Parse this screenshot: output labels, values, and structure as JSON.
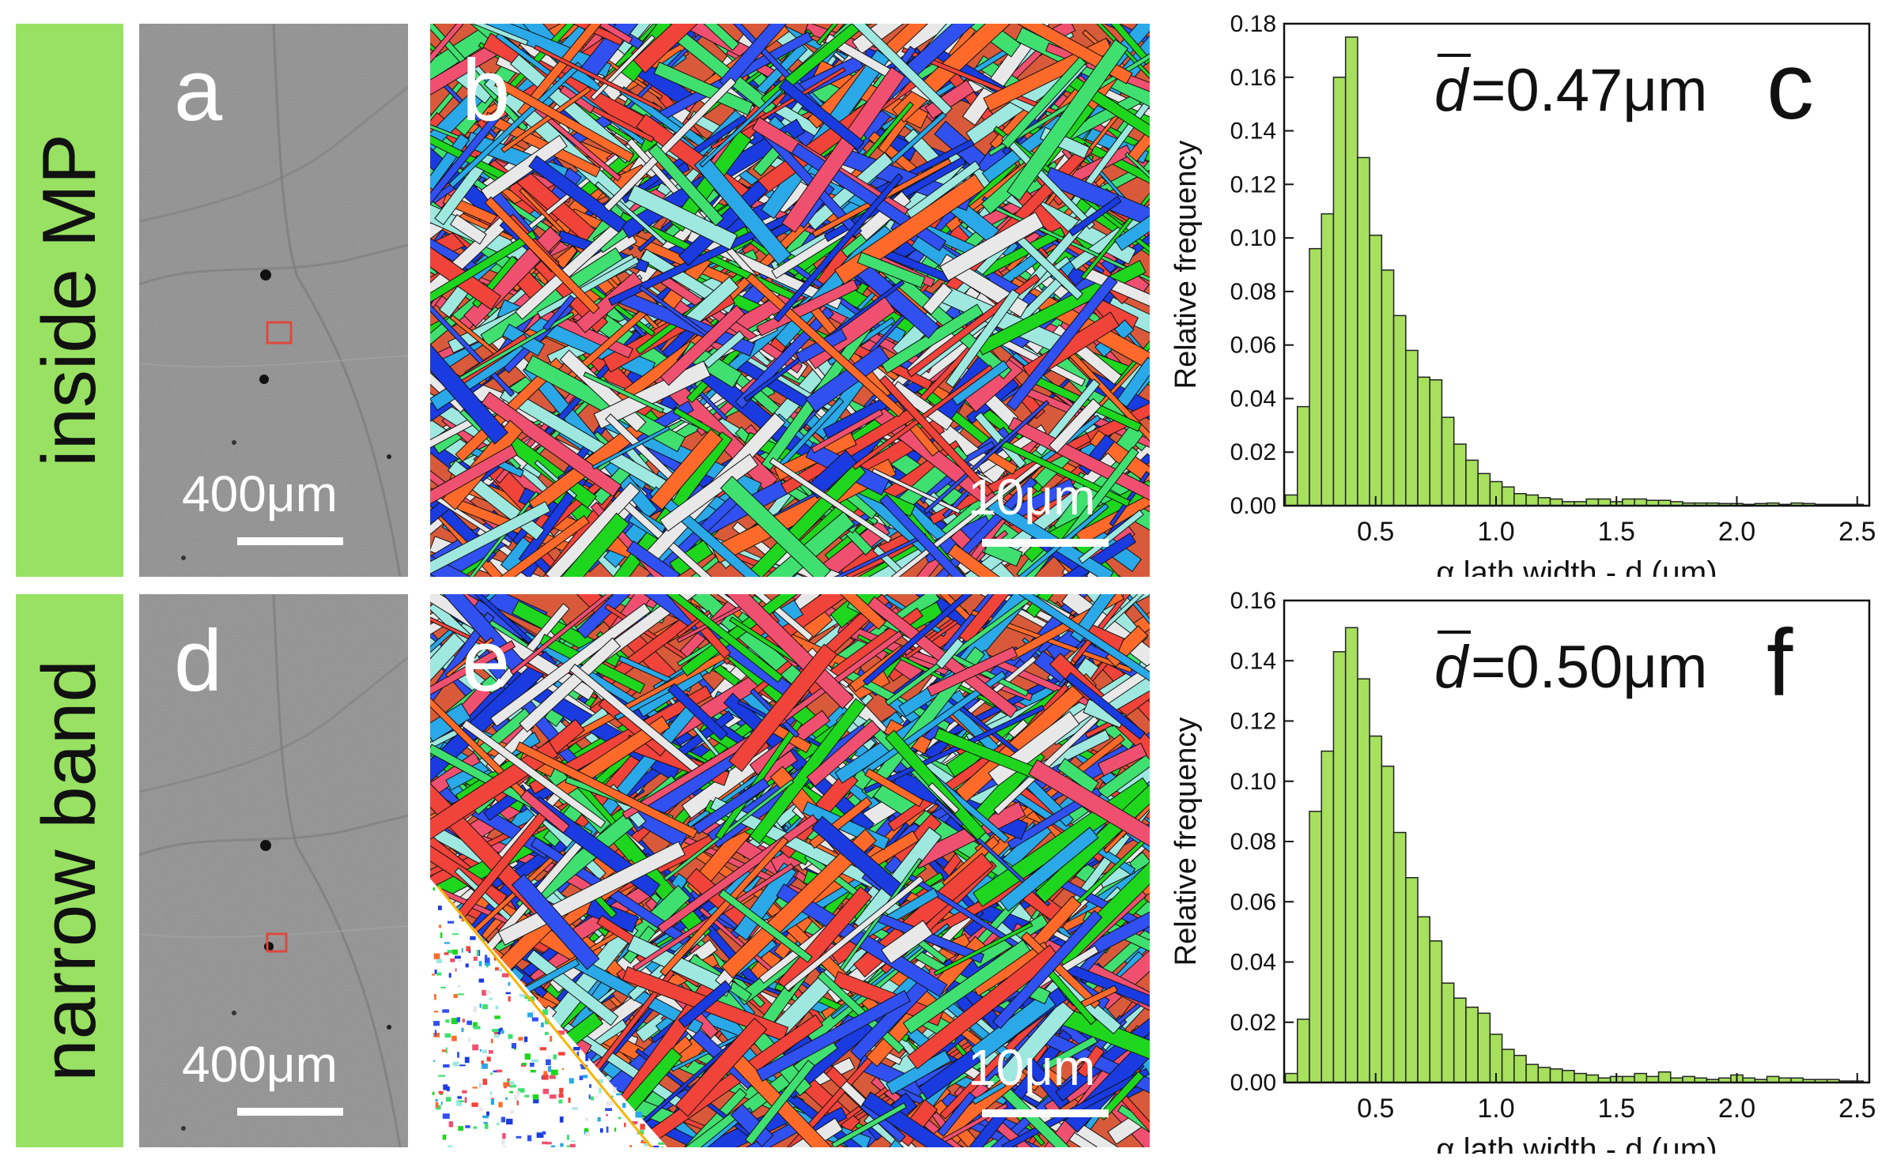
{
  "rows": [
    {
      "row_label": "inside MP",
      "sem_panel": {
        "label": "a",
        "scale_text": "400μm"
      },
      "ebsd_panel": {
        "label": "b",
        "scale_text": "10μm"
      },
      "histogram": {
        "label": "c",
        "mean_text": "=0.47μm",
        "mean_symbol": "d"
      }
    },
    {
      "row_label": "narrow band",
      "sem_panel": {
        "label": "d",
        "scale_text": "400μm"
      },
      "ebsd_panel": {
        "label": "e",
        "scale_text": "10μm"
      },
      "histogram": {
        "label": "f",
        "mean_text": "=0.50μm",
        "mean_symbol": "d"
      }
    }
  ],
  "colors": {
    "row_label_bg": "#98e162",
    "bar_fill": "#a6e05c",
    "bar_stroke": "#222222",
    "roi_box": "#e0483c"
  },
  "chart_data": [
    {
      "type": "bar",
      "panel": "c",
      "xlabel": "α lath width - d (μm)",
      "ylabel": "Relative frequency",
      "xlim": [
        0.12,
        2.55
      ],
      "ylim": [
        0,
        0.18
      ],
      "xticks": [
        0.5,
        1.0,
        1.5,
        2.0,
        2.5
      ],
      "xtick_labels": [
        "0.5",
        "1.0",
        "1.5",
        "2.0",
        "2.5"
      ],
      "yticks": [
        0.0,
        0.02,
        0.04,
        0.06,
        0.08,
        0.1,
        0.12,
        0.14,
        0.16,
        0.18
      ],
      "ytick_labels": [
        "0.00",
        "0.02",
        "0.04",
        "0.06",
        "0.08",
        "0.10",
        "0.12",
        "0.14",
        "0.16",
        "0.18"
      ],
      "bin_width": 0.05,
      "bin_start": 0.125,
      "values": [
        0.004,
        0.037,
        0.096,
        0.109,
        0.16,
        0.175,
        0.13,
        0.101,
        0.088,
        0.071,
        0.058,
        0.048,
        0.047,
        0.033,
        0.023,
        0.017,
        0.012,
        0.009,
        0.007,
        0.0045,
        0.004,
        0.003,
        0.0025,
        0.0015,
        0.0015,
        0.0025,
        0.0025,
        0.0015,
        0.0025,
        0.0025,
        0.002,
        0.002,
        0.0015,
        0.001,
        0.001,
        0.001,
        0.0008,
        0.0008,
        0.0005,
        0.0008,
        0.001,
        0.0005,
        0.001,
        0.0008,
        0.0005,
        0.0005,
        0.0005,
        0.0005
      ]
    },
    {
      "type": "bar",
      "panel": "f",
      "xlabel": "α lath width - d (μm)",
      "ylabel": "Relative frequency",
      "xlim": [
        0.12,
        2.55
      ],
      "ylim": [
        0,
        0.16
      ],
      "xticks": [
        0.5,
        1.0,
        1.5,
        2.0,
        2.5
      ],
      "xtick_labels": [
        "0.5",
        "1.0",
        "1.5",
        "2.0",
        "2.5"
      ],
      "yticks": [
        0.0,
        0.02,
        0.04,
        0.06,
        0.08,
        0.1,
        0.12,
        0.14,
        0.16
      ],
      "ytick_labels": [
        "0.00",
        "0.02",
        "0.04",
        "0.06",
        "0.08",
        "0.10",
        "0.12",
        "0.14",
        "0.16"
      ],
      "bin_width": 0.05,
      "bin_start": 0.125,
      "values": [
        0.003,
        0.021,
        0.09,
        0.11,
        0.143,
        0.151,
        0.134,
        0.115,
        0.105,
        0.083,
        0.068,
        0.055,
        0.047,
        0.033,
        0.028,
        0.025,
        0.023,
        0.016,
        0.011,
        0.009,
        0.006,
        0.005,
        0.0045,
        0.004,
        0.003,
        0.0025,
        0.0015,
        0.002,
        0.002,
        0.003,
        0.002,
        0.0035,
        0.0015,
        0.002,
        0.0015,
        0.001,
        0.0015,
        0.0025,
        0.0015,
        0.001,
        0.002,
        0.0015,
        0.0015,
        0.001,
        0.001,
        0.001,
        0.0005,
        0.0005
      ]
    }
  ]
}
